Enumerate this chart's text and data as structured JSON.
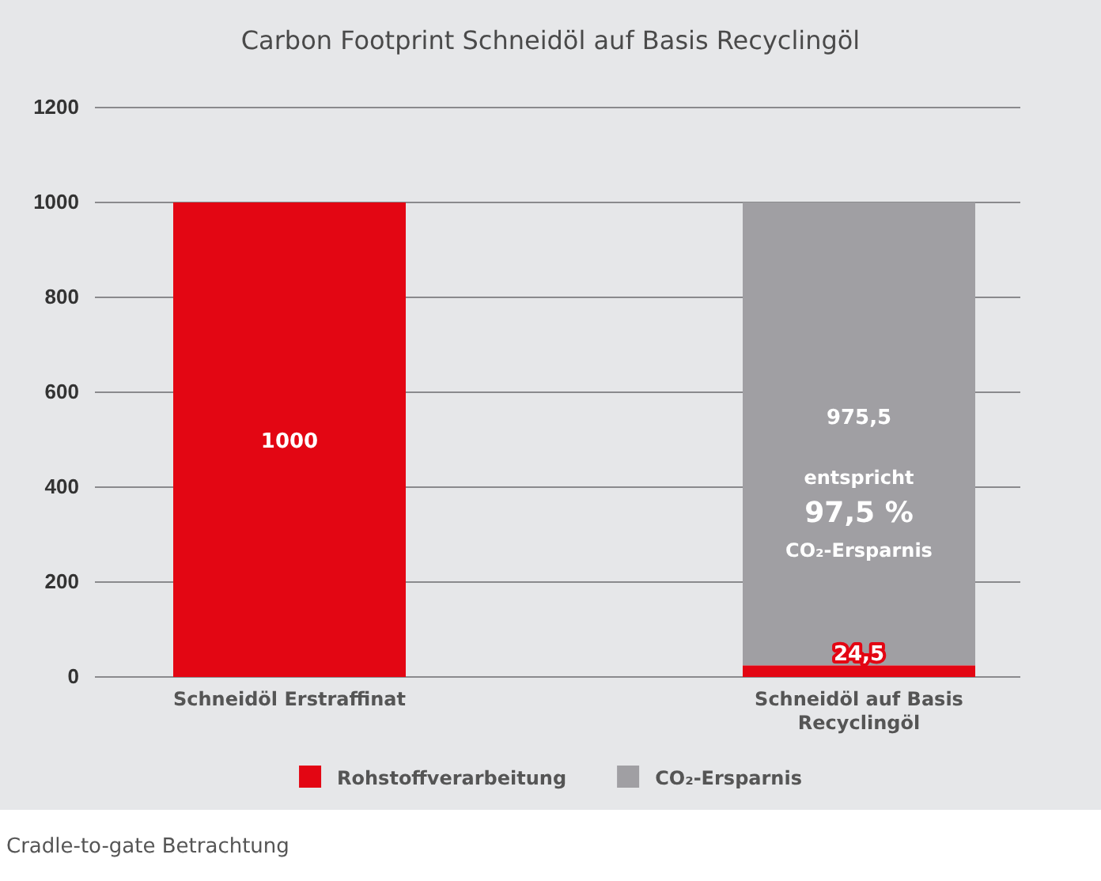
{
  "chart_data": {
    "type": "bar",
    "title": "Carbon Footprint Schneidöl auf Basis Recyclingöl",
    "categories": [
      "Schneidöl Erstraffinat",
      "Schneidöl auf Basis Recyclingöl"
    ],
    "stacked": true,
    "series": [
      {
        "name": "Rohstoffverarbeitung",
        "color": "#e30613",
        "values": [
          1000,
          24.5
        ],
        "value_labels": [
          "1000",
          "24,5"
        ]
      },
      {
        "name": "CO₂-Ersparnis",
        "color": "#a09fa3",
        "values": [
          null,
          975.5
        ],
        "value_labels": [
          null,
          "975,5"
        ]
      }
    ],
    "ylim": [
      0,
      1200
    ],
    "yticks": [
      0,
      200,
      400,
      600,
      800,
      1000,
      1200
    ],
    "grid": "y",
    "legend": "bottom",
    "annotations": [
      "entspricht",
      "97,5 %",
      "CO₂-Ersparnis",
      "Cradle-to-gate Betrachtung"
    ]
  }
}
